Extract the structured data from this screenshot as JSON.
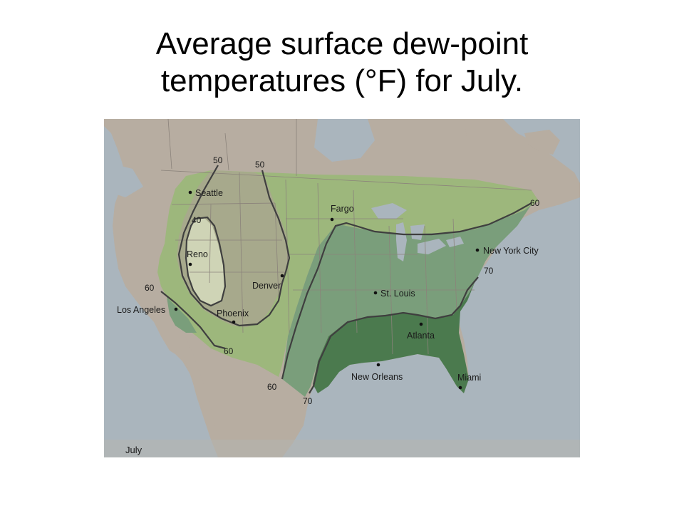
{
  "slide": {
    "title_line1": "Average surface dew-point",
    "title_line2": "temperatures (°F) for July."
  },
  "map": {
    "month_label": "July",
    "colors": {
      "ocean": "#aab5bd",
      "land": "#b7ada1",
      "zone_50_60": "#9db77c",
      "zone_40_50": "#a7a98c",
      "zone_below_40": "#cfd4b6",
      "zone_60_70": "#7a9e7b",
      "zone_above_70": "#4b7a4e",
      "isoline": "#3f3f3f"
    },
    "cities": {
      "seattle": "Seattle",
      "reno": "Reno",
      "denver": "Denver",
      "phoenix": "Phoenix",
      "los_angeles": "Los Angeles",
      "fargo": "Fargo",
      "st_louis": "St. Louis",
      "new_york": "New York City",
      "atlanta": "Atlanta",
      "new_orleans": "New Orleans",
      "miami": "Miami"
    },
    "isoline_labels": {
      "nw_50_a": "50",
      "nw_50_b": "50",
      "inner_40": "40",
      "west_60_top": "60",
      "west_60_bottom": "60",
      "east_60_top": "60",
      "east_60_bottom": "60",
      "east_70_top": "70",
      "east_70_bottom": "70"
    }
  }
}
